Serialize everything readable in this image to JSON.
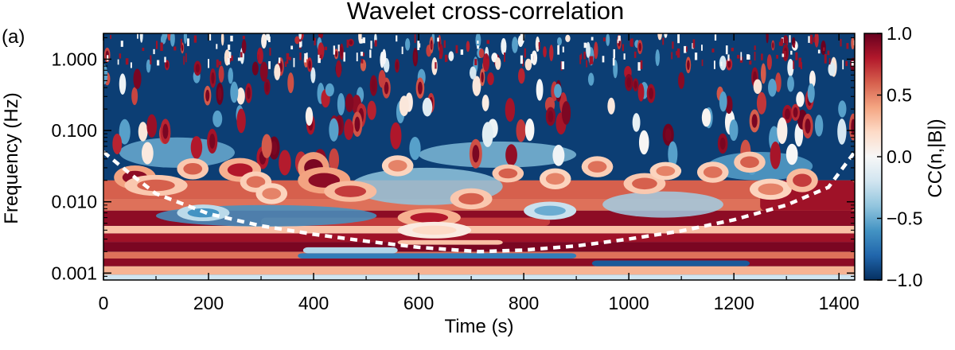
{
  "chart_data": {
    "type": "heatmap",
    "title": "Wavelet cross-correlation",
    "panel_label": "(a)",
    "xlabel": "Time (s)",
    "ylabel": "Frequency (Hz)",
    "xlim": [
      0,
      1430
    ],
    "ylim": [
      0.0008,
      2.3
    ],
    "y_scale": "log",
    "x_ticks": [
      0,
      200,
      400,
      600,
      800,
      1000,
      1200,
      1400
    ],
    "x_tick_labels": [
      "0",
      "200",
      "400",
      "600",
      "800",
      "1000",
      "1200",
      "1400"
    ],
    "y_ticks": [
      0.001,
      0.01,
      0.1,
      1
    ],
    "y_tick_labels": [
      "0.001",
      "0.010",
      "0.100",
      "1.000"
    ],
    "colorbar": {
      "label": "CC(n,|B|)",
      "range": [
        -1.0,
        1.0
      ],
      "ticks": [
        1.0,
        0.5,
        0.0,
        -0.5,
        -1.0
      ],
      "tick_labels": [
        "1.0",
        "0.5",
        "0.0",
        "−0.5",
        "−1.0"
      ],
      "colormap": [
        "#053061",
        "#2166ac",
        "#4393c3",
        "#92c5de",
        "#d1e5f0",
        "#f7f7f7",
        "#fddbc7",
        "#f4a582",
        "#d6604d",
        "#b2182b",
        "#67001f"
      ]
    },
    "cone_of_influence": {
      "style": "white dashed",
      "time": [
        0,
        50,
        100,
        200,
        300,
        400,
        500,
        600,
        715,
        800,
        900,
        1000,
        1100,
        1200,
        1300,
        1380,
        1430
      ],
      "frequency": [
        0.05,
        0.025,
        0.013,
        0.0068,
        0.0046,
        0.0035,
        0.0028,
        0.0023,
        0.002,
        0.0021,
        0.0024,
        0.003,
        0.0039,
        0.0056,
        0.009,
        0.016,
        0.05
      ]
    },
    "bands": [
      {
        "f_low": 0.00095,
        "f_high": 0.00125,
        "cc": 0.35
      },
      {
        "f_low": 0.00125,
        "f_high": 0.0016,
        "cc": 0.9
      },
      {
        "f_low": 0.0016,
        "f_high": 0.002,
        "cc": 0.55
      },
      {
        "f_low": 0.002,
        "f_high": 0.0027,
        "cc": 0.95
      },
      {
        "f_low": 0.0027,
        "f_high": 0.0036,
        "cc": 0.85
      },
      {
        "f_low": 0.0036,
        "f_high": 0.0046,
        "cc": 0.3
      },
      {
        "f_low": 0.0046,
        "f_high": 0.0075,
        "cc": 0.9
      },
      {
        "f_low": 0.0075,
        "f_high": 0.011,
        "cc": 0.55
      },
      {
        "f_low": 0.011,
        "f_high": 0.02,
        "cc": 0.6
      }
    ],
    "band_variants": [
      {
        "t_start": 370,
        "t_end": 900,
        "f_low": 0.0016,
        "f_high": 0.0019,
        "cc": -0.7
      },
      {
        "t_start": 380,
        "t_end": 560,
        "f_low": 0.0019,
        "f_high": 0.0023,
        "cc": -0.3
      },
      {
        "t_start": 930,
        "t_end": 1230,
        "f_low": 0.00125,
        "f_high": 0.0015,
        "cc": -0.85
      },
      {
        "t_start": 300,
        "t_end": 850,
        "f_low": 0.0046,
        "f_high": 0.006,
        "cc": 0.7
      },
      {
        "t_start": 560,
        "t_end": 760,
        "f_low": 0.0025,
        "f_high": 0.0029,
        "cc": 0.3
      },
      {
        "t_start": 1250,
        "t_end": 1430,
        "f_low": 0.0075,
        "f_high": 0.02,
        "cc": 0.85
      }
    ],
    "midfield_cc": -0.95,
    "midfield_regions": [
      {
        "t_start": 470,
        "t_end": 760,
        "f_low": 0.009,
        "f_high": 0.03,
        "cc": -0.4
      },
      {
        "t_start": 950,
        "t_end": 1180,
        "f_low": 0.006,
        "f_high": 0.014,
        "cc": -0.35
      },
      {
        "t_start": 30,
        "t_end": 250,
        "f_low": 0.03,
        "f_high": 0.08,
        "cc": -0.5
      },
      {
        "t_start": 100,
        "t_end": 520,
        "f_low": 0.0045,
        "f_high": 0.009,
        "cc": -0.6
      },
      {
        "t_start": 1150,
        "t_end": 1350,
        "f_low": 0.02,
        "f_high": 0.05,
        "cc": -0.55
      },
      {
        "t_start": 600,
        "t_end": 900,
        "f_low": 0.03,
        "f_high": 0.07,
        "cc": -0.45
      }
    ],
    "blobs": [
      {
        "t": 60,
        "f": 0.022,
        "dt": 40,
        "df": 0.06,
        "cc": 0.9
      },
      {
        "t": 100,
        "f": 0.017,
        "dt": 60,
        "df": 0.05,
        "cc": 0.6
      },
      {
        "t": 170,
        "f": 0.029,
        "dt": 30,
        "df": 0.05,
        "cc": 0.6
      },
      {
        "t": 260,
        "f": 0.028,
        "dt": 40,
        "df": 0.06,
        "cc": 0.8
      },
      {
        "t": 290,
        "f": 0.019,
        "dt": 30,
        "df": 0.05,
        "cc": 0.55
      },
      {
        "t": 320,
        "f": 0.013,
        "dt": 30,
        "df": 0.05,
        "cc": 0.5
      },
      {
        "t": 400,
        "f": 0.03,
        "dt": 30,
        "df": 0.09,
        "cc": 0.95
      },
      {
        "t": 420,
        "f": 0.02,
        "dt": 50,
        "df": 0.07,
        "cc": 0.9
      },
      {
        "t": 470,
        "f": 0.014,
        "dt": 50,
        "df": 0.05,
        "cc": 0.7
      },
      {
        "t": 560,
        "f": 0.032,
        "dt": 30,
        "df": 0.05,
        "cc": 0.5
      },
      {
        "t": 620,
        "f": 0.006,
        "dt": 60,
        "df": 0.04,
        "cc": 0.8
      },
      {
        "t": 700,
        "f": 0.011,
        "dt": 40,
        "df": 0.05,
        "cc": 0.6
      },
      {
        "t": 770,
        "f": 0.025,
        "dt": 30,
        "df": 0.04,
        "cc": 0.6
      },
      {
        "t": 860,
        "f": 0.021,
        "dt": 30,
        "df": 0.05,
        "cc": 0.5
      },
      {
        "t": 940,
        "f": 0.031,
        "dt": 30,
        "df": 0.05,
        "cc": 0.55
      },
      {
        "t": 1030,
        "f": 0.018,
        "dt": 40,
        "df": 0.05,
        "cc": 0.6
      },
      {
        "t": 1070,
        "f": 0.027,
        "dt": 30,
        "df": 0.04,
        "cc": 0.5
      },
      {
        "t": 1160,
        "f": 0.026,
        "dt": 30,
        "df": 0.05,
        "cc": 0.55
      },
      {
        "t": 1230,
        "f": 0.036,
        "dt": 30,
        "df": 0.05,
        "cc": 0.6
      },
      {
        "t": 1270,
        "f": 0.015,
        "dt": 40,
        "df": 0.05,
        "cc": 0.5
      },
      {
        "t": 1330,
        "f": 0.02,
        "dt": 30,
        "df": 0.06,
        "cc": 0.7
      },
      {
        "t": 190,
        "f": 0.007,
        "dt": 50,
        "df": 0.035,
        "cc": -0.6
      },
      {
        "t": 630,
        "f": 0.004,
        "dt": 70,
        "df": 0.035,
        "cc": 0.2
      },
      {
        "t": 850,
        "f": 0.0075,
        "dt": 50,
        "df": 0.04,
        "cc": -0.5
      }
    ],
    "high_frequency_texture": {
      "f_low": 0.03,
      "f_high": 2.3,
      "background_cc": -0.95,
      "blob_density": 240,
      "note": "dense fine-scale alternating red/white/blue speckle above ~0.03 Hz"
    }
  }
}
